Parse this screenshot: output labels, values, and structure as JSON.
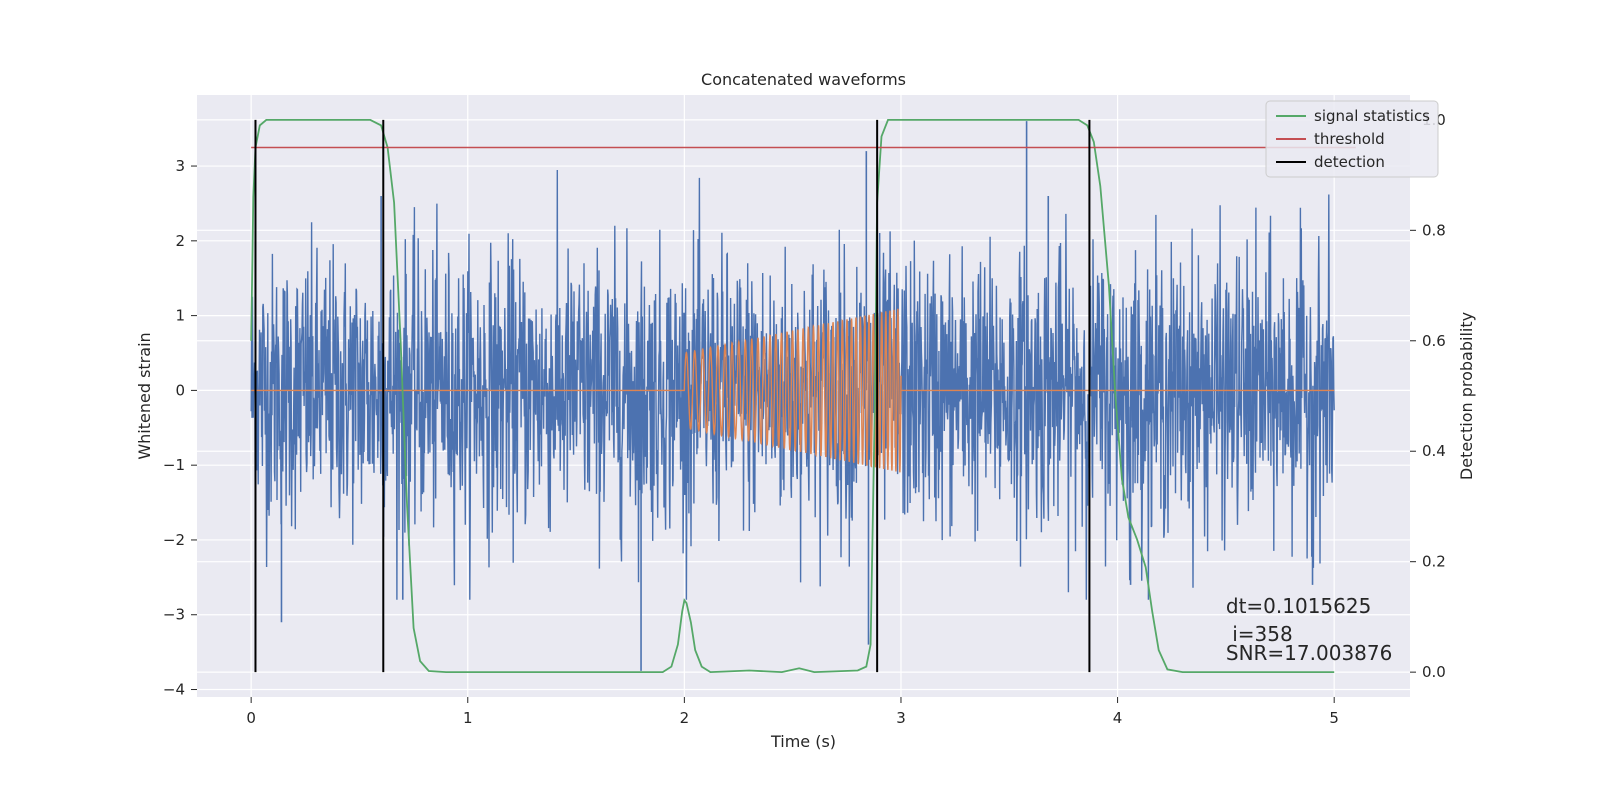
{
  "chart_data": {
    "type": "line",
    "title": "Concatenated waveforms",
    "xlabel": "Time (s)",
    "ylabel": "Whitened strain",
    "ylabel_right": "Detection probability",
    "xlim": [
      -0.25,
      5.35
    ],
    "ylim": [
      -4.1,
      3.95
    ],
    "ylim_right": [
      -0.045,
      1.045
    ],
    "x_ticks": [
      0,
      1,
      2,
      3,
      4,
      5
    ],
    "y_ticks": [
      -4,
      -3,
      -2,
      -1,
      0,
      1,
      2,
      3
    ],
    "y_ticks_right": [
      0.0,
      0.2,
      0.4,
      0.6,
      0.8,
      1.0
    ],
    "grid": true,
    "legend_position": "top-right",
    "series": [
      {
        "key": "strain",
        "color": "#4c72b0",
        "axis": "left",
        "description_values": "noisy whitened strain, roughly uniform amplitude about ±2 with spikes to ±3.6, sampled 0 to 5 s",
        "x_range": [
          0,
          5
        ],
        "std": 0.9,
        "spikes": [
          {
            "x": 3.58,
            "y": 3.6
          },
          {
            "x": 2.84,
            "y": 3.2
          },
          {
            "x": 1.8,
            "y": -3.75
          },
          {
            "x": 0.14,
            "y": -3.1
          },
          {
            "x": 2.85,
            "y": -3.4
          },
          {
            "x": 4.9,
            "y": -2.6
          },
          {
            "x": 0.6,
            "y": 2.6
          },
          {
            "x": 0.7,
            "y": -2.8
          },
          {
            "x": 3.68,
            "y": 2.6
          },
          {
            "x": 4.06,
            "y": -2.6
          }
        ]
      },
      {
        "key": "injection",
        "color": "#dd8452",
        "axis": "left",
        "description_values": "injected chirp waveform: zero except between 2.0 s and 3.0 s, amplitude growing from 0.5 to 1.1 with rising frequency",
        "x_range": [
          0,
          5
        ],
        "chirp_start": 2.0,
        "chirp_end": 3.0,
        "amp_start": 0.5,
        "amp_end": 1.1,
        "freq_start": 25,
        "freq_end": 55
      },
      {
        "name": "signal statistics",
        "color": "#55a868",
        "axis": "right",
        "points": [
          [
            0.0,
            0.6
          ],
          [
            0.01,
            0.86
          ],
          [
            0.02,
            0.95
          ],
          [
            0.04,
            0.99
          ],
          [
            0.07,
            1.0
          ],
          [
            0.55,
            1.0
          ],
          [
            0.6,
            0.99
          ],
          [
            0.63,
            0.95
          ],
          [
            0.66,
            0.85
          ],
          [
            0.69,
            0.6
          ],
          [
            0.72,
            0.3
          ],
          [
            0.75,
            0.08
          ],
          [
            0.78,
            0.02
          ],
          [
            0.82,
            0.002
          ],
          [
            0.9,
            0.0
          ],
          [
            1.9,
            0.0
          ],
          [
            1.94,
            0.01
          ],
          [
            1.97,
            0.05
          ],
          [
            1.99,
            0.11
          ],
          [
            2.0,
            0.13
          ],
          [
            2.01,
            0.125
          ],
          [
            2.03,
            0.09
          ],
          [
            2.05,
            0.04
          ],
          [
            2.08,
            0.01
          ],
          [
            2.12,
            0.0
          ],
          [
            2.3,
            0.003
          ],
          [
            2.45,
            0.0
          ],
          [
            2.53,
            0.007
          ],
          [
            2.6,
            0.0
          ],
          [
            2.8,
            0.003
          ],
          [
            2.84,
            0.01
          ],
          [
            2.86,
            0.05
          ],
          [
            2.88,
            0.5
          ],
          [
            2.89,
            0.85
          ],
          [
            2.91,
            0.97
          ],
          [
            2.94,
            1.0
          ],
          [
            3.82,
            1.0
          ],
          [
            3.86,
            0.99
          ],
          [
            3.89,
            0.96
          ],
          [
            3.92,
            0.88
          ],
          [
            3.96,
            0.7
          ],
          [
            3.99,
            0.5
          ],
          [
            4.02,
            0.35
          ],
          [
            4.05,
            0.28
          ],
          [
            4.09,
            0.24
          ],
          [
            4.13,
            0.19
          ],
          [
            4.16,
            0.11
          ],
          [
            4.19,
            0.04
          ],
          [
            4.23,
            0.005
          ],
          [
            4.3,
            0.0
          ],
          [
            5.0,
            0.0
          ]
        ]
      },
      {
        "name": "threshold",
        "color": "#c44e52",
        "axis": "right",
        "points": [
          [
            0.0,
            0.95
          ],
          [
            5.1,
            0.95
          ]
        ]
      },
      {
        "name": "detection",
        "color": "#000000",
        "axis": "right",
        "vertical_lines_x": [
          0.02,
          0.61,
          2.89,
          3.87
        ],
        "vertical_range": [
          0.0,
          1.0
        ]
      }
    ],
    "annotations": [
      {
        "text": "dt=0.1015625",
        "x": 4.5,
        "y_right": 0.1
      },
      {
        "text": " i=358",
        "x": 4.5,
        "y_right": 0.05
      },
      {
        "text": "SNR=17.003876",
        "x": 4.5,
        "y_right": 0.02
      }
    ]
  }
}
